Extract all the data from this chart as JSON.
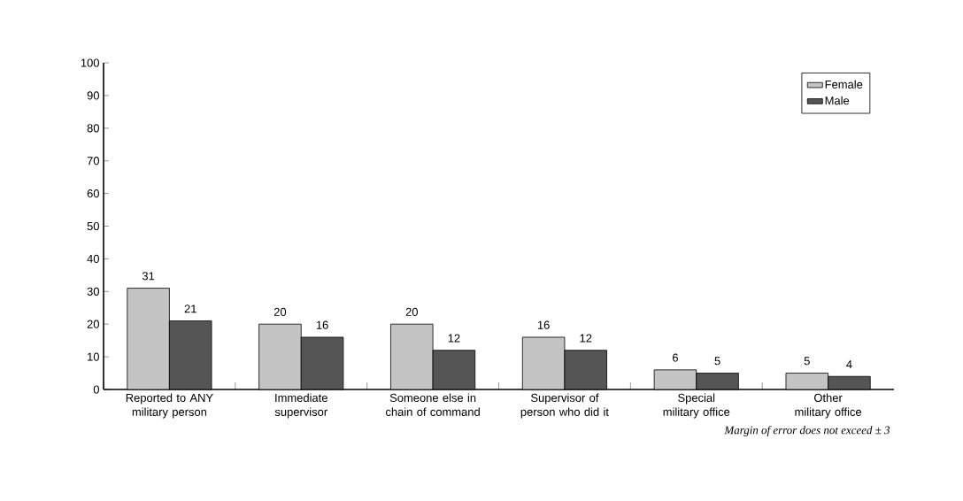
{
  "chart_data": {
    "type": "bar",
    "categories": [
      "Reported to ANY military person",
      "Immediate supervisor",
      "Someone else in chain of command",
      "Supervisor of person who did it",
      "Special military office",
      "Other military office"
    ],
    "series": [
      {
        "name": "Female",
        "color": "#c4c4c4",
        "values": [
          31,
          20,
          20,
          16,
          6,
          5
        ]
      },
      {
        "name": "Male",
        "color": "#555555",
        "values": [
          21,
          16,
          12,
          12,
          5,
          4
        ]
      }
    ],
    "ylim": [
      0,
      100
    ],
    "yticks": [
      0,
      10,
      20,
      30,
      40,
      50,
      60,
      70,
      80,
      90,
      100
    ],
    "data_labels": true,
    "legend": "top right",
    "annotations": [
      "Margin of error does not exceed ± 3"
    ]
  }
}
